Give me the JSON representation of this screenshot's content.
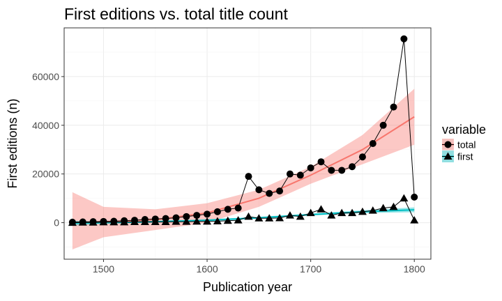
{
  "chart_data": {
    "type": "line",
    "title": "First editions vs. total title count",
    "xlabel": "Publication year",
    "ylabel": "First editions (n)",
    "xlim": [
      1462,
      1816
    ],
    "ylim": [
      -15000,
      80000
    ],
    "x_ticks": [
      1500,
      1600,
      1700,
      1800
    ],
    "y_ticks": [
      0,
      20000,
      40000,
      60000
    ],
    "grid": true,
    "legend_position": "right",
    "legend": {
      "title": "variable",
      "entries": [
        {
          "label": "total",
          "color": "#F8766D",
          "shape": "circle"
        },
        {
          "label": "first",
          "color": "#00BFC4",
          "shape": "triangle"
        }
      ]
    },
    "x": [
      1470,
      1480,
      1490,
      1500,
      1510,
      1520,
      1530,
      1540,
      1550,
      1560,
      1570,
      1580,
      1590,
      1600,
      1610,
      1620,
      1630,
      1640,
      1650,
      1660,
      1670,
      1680,
      1690,
      1700,
      1710,
      1720,
      1730,
      1740,
      1750,
      1760,
      1770,
      1780,
      1790,
      1800
    ],
    "series": [
      {
        "name": "total",
        "shape": "circle",
        "values": [
          200,
          300,
          400,
          500,
          600,
          800,
          1000,
          1300,
          1500,
          1700,
          2000,
          2500,
          3000,
          3500,
          4500,
          5500,
          6000,
          19000,
          13500,
          12000,
          13000,
          20000,
          19500,
          22500,
          25000,
          21500,
          21500,
          23000,
          27000,
          32500,
          40000,
          47500,
          75500,
          10500
        ],
        "smooth": {
          "color": "#F8766D",
          "x": [
            1470,
            1500,
            1550,
            1600,
            1650,
            1700,
            1750,
            1800
          ],
          "fit": [
            0,
            200,
            1200,
            4000,
            10000,
            19500,
            30000,
            43500
          ],
          "lower": [
            -11000,
            -6000,
            -3000,
            0,
            6500,
            16000,
            24000,
            32000
          ],
          "upper": [
            12500,
            6500,
            5500,
            8000,
            13500,
            23000,
            36000,
            55000
          ]
        }
      },
      {
        "name": "first",
        "shape": "triangle",
        "values": [
          0,
          100,
          100,
          200,
          200,
          200,
          300,
          300,
          300,
          300,
          400,
          400,
          500,
          500,
          600,
          800,
          1000,
          2500,
          1800,
          1800,
          1900,
          3000,
          2500,
          4000,
          5500,
          3000,
          4000,
          4000,
          4500,
          5000,
          6000,
          6500,
          10000,
          1000
        ],
        "smooth": {
          "color": "#00BFC4",
          "x": [
            1470,
            1500,
            1550,
            1600,
            1650,
            1700,
            1750,
            1800
          ],
          "fit": [
            -200,
            0,
            400,
            1000,
            2000,
            3300,
            4500,
            5300
          ],
          "lower": [
            -1200,
            -500,
            0,
            600,
            1600,
            2900,
            3900,
            4300
          ],
          "upper": [
            800,
            500,
            800,
            1400,
            2400,
            3700,
            5100,
            6300
          ]
        }
      }
    ]
  }
}
